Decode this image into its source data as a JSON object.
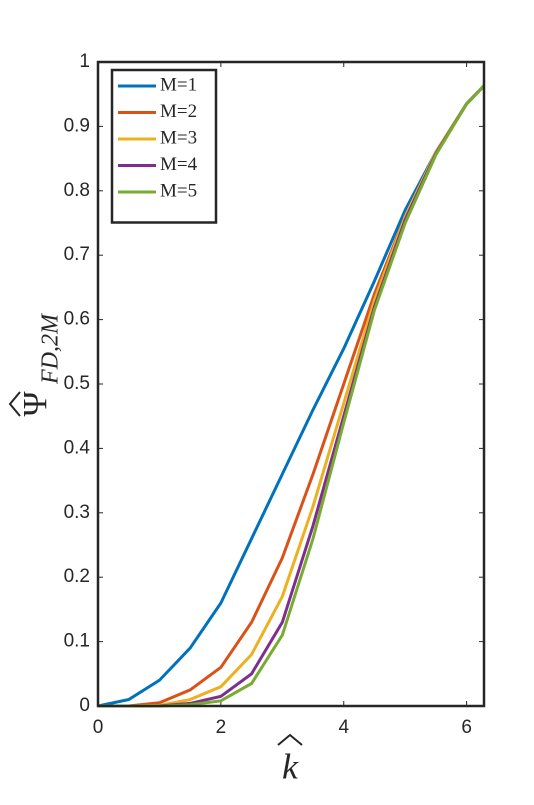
{
  "chart_data": {
    "type": "line",
    "xlabel": "k",
    "ylabel": "Ψ",
    "ylabel_subscript": "FD,2M",
    "x": [
      0,
      0.5,
      1,
      1.5,
      2,
      2.5,
      3,
      3.5,
      4,
      4.5,
      5,
      5.5,
      6,
      6.283
    ],
    "series": [
      {
        "name": "M=1",
        "color": "#0072BD",
        "values": [
          0,
          0.01,
          0.04,
          0.09,
          0.16,
          0.26,
          0.36,
          0.46,
          0.555,
          0.66,
          0.77,
          0.86,
          0.935,
          0.963
        ]
      },
      {
        "name": "M=2",
        "color": "#D95319",
        "values": [
          0,
          0,
          0.005,
          0.025,
          0.06,
          0.13,
          0.23,
          0.36,
          0.5,
          0.64,
          0.76,
          0.86,
          0.935,
          0.963
        ]
      },
      {
        "name": "M=3",
        "color": "#EDB120",
        "values": [
          0,
          0,
          0.001,
          0.01,
          0.03,
          0.08,
          0.17,
          0.31,
          0.47,
          0.63,
          0.76,
          0.86,
          0.935,
          0.963
        ]
      },
      {
        "name": "M=4",
        "color": "#7E2F8E",
        "values": [
          0,
          0,
          0,
          0.004,
          0.015,
          0.05,
          0.13,
          0.28,
          0.45,
          0.62,
          0.755,
          0.858,
          0.935,
          0.963
        ]
      },
      {
        "name": "M=5",
        "color": "#77AC30",
        "values": [
          0,
          0,
          0,
          0.002,
          0.008,
          0.035,
          0.11,
          0.26,
          0.44,
          0.615,
          0.75,
          0.856,
          0.935,
          0.963
        ]
      }
    ],
    "xlim": [
      0,
      6.283
    ],
    "xticks": [
      0,
      2,
      4,
      6
    ],
    "ylim": [
      0,
      1
    ],
    "yticks": [
      0,
      0.1,
      0.2,
      0.3,
      0.4,
      0.5,
      0.6,
      0.7,
      0.8,
      0.9,
      1
    ],
    "grid": false,
    "legend": "upper left"
  }
}
